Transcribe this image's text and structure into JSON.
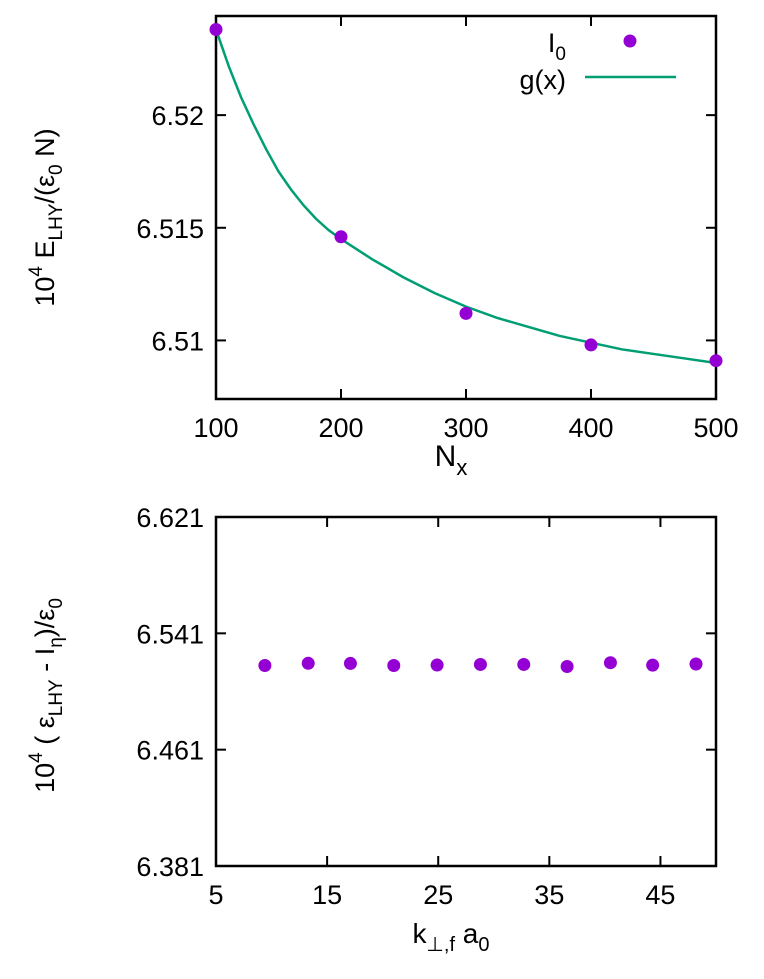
{
  "chart_data": [
    {
      "type": "scatter",
      "title": "",
      "xlabel": "N",
      "xlabel_sub": "x",
      "ylabel_parts": {
        "pre": "10",
        "exp": "4",
        "mid": " E",
        "sub1": "LHY",
        "post1": "/(ε",
        "sub2": "0",
        "post2": " N)"
      },
      "xlim": [
        100,
        500
      ],
      "ylim": [
        6.5074,
        6.5244
      ],
      "xticks": [
        100,
        200,
        300,
        400,
        500
      ],
      "xtick_labels": [
        "100",
        "200",
        "300",
        "400",
        "500"
      ],
      "yticks": [
        6.51,
        6.515,
        6.52
      ],
      "ytick_labels": [
        "6.51",
        "6.515",
        "6.52"
      ],
      "grid": false,
      "legend_position": "top-right",
      "legend": [
        {
          "label": "I",
          "sub": "0",
          "kind": "points"
        },
        {
          "label": "g(x)",
          "sub": "",
          "kind": "line"
        }
      ],
      "series": [
        {
          "name": "I0",
          "kind": "points",
          "color": "#9400d3",
          "x": [
            100,
            200,
            300,
            400,
            500
          ],
          "y": [
            6.5238,
            6.5146,
            6.5112,
            6.5098,
            6.5091
          ]
        },
        {
          "name": "g(x)",
          "kind": "line",
          "color": "#009e73",
          "x": [
            100,
            110,
            120,
            130,
            140,
            150,
            160,
            170,
            180,
            190,
            200,
            225,
            250,
            275,
            300,
            325,
            350,
            375,
            400,
            425,
            450,
            475,
            500
          ],
          "y": [
            6.5238,
            6.5222,
            6.5208,
            6.5196,
            6.5185,
            6.5175,
            6.5167,
            6.516,
            6.5154,
            6.5149,
            6.5145,
            6.5136,
            6.5128,
            6.5121,
            6.5115,
            6.511,
            6.5106,
            6.5102,
            6.5099,
            6.5096,
            6.5094,
            6.5092,
            6.509
          ]
        }
      ]
    },
    {
      "type": "scatter",
      "title": "",
      "xlabel_parts": {
        "pre": "k",
        "sub": "⊥,f",
        "mid": " a",
        "sub2": "0"
      },
      "ylabel_parts": {
        "pre": "10",
        "exp": "4",
        "post1": " ( ε",
        "sub1": "LHY",
        "mid": " - I",
        "sub2": "η",
        "post2": ")/ε",
        "sub3": "0"
      },
      "xlim": [
        5,
        50
      ],
      "ylim": [
        6.381,
        6.621
      ],
      "xticks": [
        5,
        15,
        25,
        35,
        45
      ],
      "xtick_labels": [
        "5",
        "15",
        "25",
        "35",
        "45"
      ],
      "yticks": [
        6.381,
        6.461,
        6.541,
        6.621
      ],
      "ytick_labels": [
        "6.381",
        "6.461",
        "6.541",
        "6.621"
      ],
      "grid": false,
      "series": [
        {
          "name": "points",
          "kind": "points",
          "color": "#9400d3",
          "x": [
            9.4,
            13.3,
            17.1,
            21,
            24.9,
            28.8,
            32.7,
            36.6,
            40.5,
            44.3,
            48.2
          ],
          "y": [
            6.5189,
            6.5204,
            6.5203,
            6.5189,
            6.5192,
            6.5196,
            6.5196,
            6.5182,
            6.5208,
            6.5191,
            6.5199
          ]
        }
      ]
    }
  ]
}
